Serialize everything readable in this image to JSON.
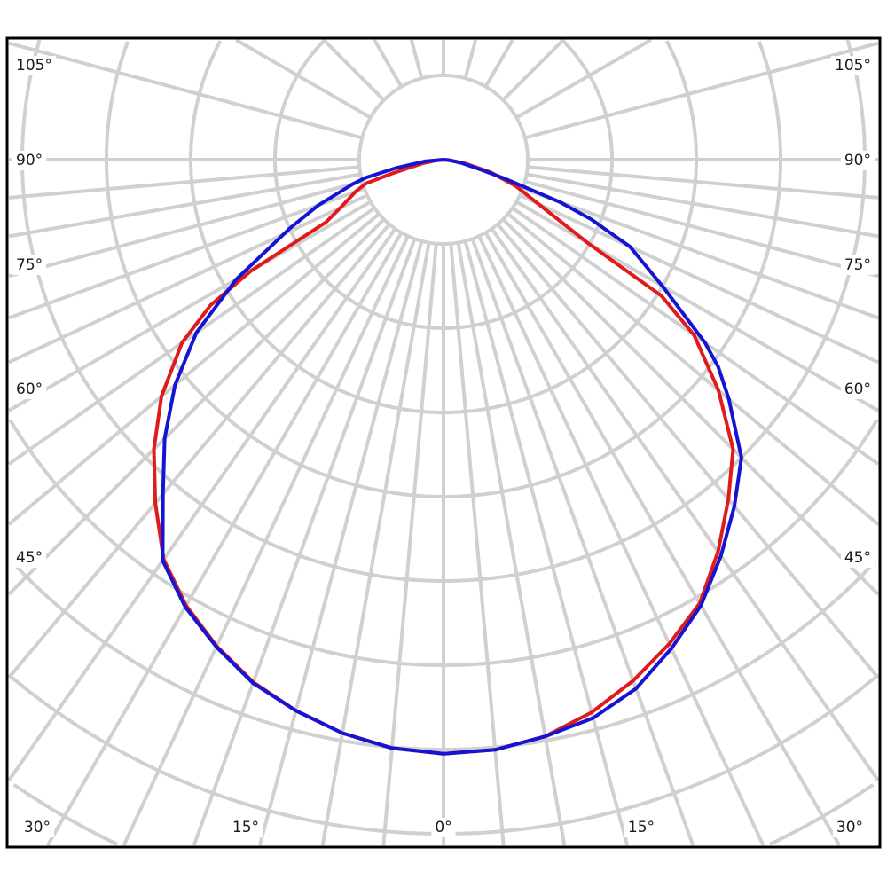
{
  "chart_data": {
    "type": "line",
    "subtype": "polar",
    "title": "",
    "angle_labels": {
      "bottom": [
        "30°",
        "15°",
        "0°",
        "15°",
        "30°"
      ],
      "left": [
        "105°",
        "90°",
        "75°",
        "60°",
        "45°"
      ],
      "right": [
        "105°",
        "90°",
        "75°",
        "60°",
        "45°"
      ]
    },
    "angle_unit": "degrees",
    "radial_rings": 10,
    "radial_tick_labels": [],
    "grid": true,
    "legend": "none",
    "colors": {
      "grid": "#d0d0d0",
      "frame": "#000000"
    },
    "series": [
      {
        "color": "#e01b1b",
        "angles": [
          -90,
          -85,
          -80,
          -75,
          -73,
          -70,
          -65,
          -62,
          -60,
          -58,
          -55,
          -50,
          -45,
          -40,
          -35,
          -30,
          -25,
          -20,
          -15,
          -10,
          -5,
          0,
          5,
          10,
          15,
          20,
          25,
          30,
          35,
          40,
          45,
          50,
          55,
          58,
          60,
          65,
          70,
          75,
          80,
          85,
          90
        ],
        "values": [
          0,
          0.08,
          0.26,
          0.63,
          0.96,
          1.11,
          1.35,
          1.58,
          2.63,
          3.26,
          3.79,
          4.37,
          4.86,
          5.32,
          5.79,
          6.11,
          6.37,
          6.6,
          6.77,
          6.91,
          7.01,
          7.05,
          7.03,
          6.95,
          6.79,
          6.58,
          6.34,
          6.08,
          5.68,
          5.26,
          4.86,
          4.26,
          3.63,
          3.05,
          1.98,
          1.24,
          0.91,
          0.58,
          0.26,
          0.08,
          0
        ]
      },
      {
        "color": "#1414d2",
        "angles": [
          -90,
          -85,
          -80,
          -77,
          -75,
          -70,
          -66,
          -60,
          -55,
          -50,
          -45,
          -40,
          -35,
          -30,
          -25,
          -20,
          -15,
          -10,
          -5,
          0,
          5,
          10,
          15,
          20,
          25,
          30,
          35,
          40,
          45,
          50,
          53,
          55,
          60,
          65,
          68,
          70,
          73,
          75,
          80,
          85,
          90
        ],
        "values": [
          0,
          0.21,
          0.58,
          0.94,
          1.11,
          1.58,
          1.99,
          2.84,
          3.58,
          4.16,
          4.68,
          5.18,
          5.81,
          6.13,
          6.38,
          6.61,
          6.77,
          6.91,
          7.01,
          7.05,
          7.03,
          6.95,
          6.86,
          6.68,
          6.4,
          6.11,
          5.74,
          5.37,
          5.0,
          4.42,
          4.08,
          3.79,
          3.0,
          2.44,
          1.89,
          1.47,
          0.74,
          0.47,
          0.21,
          0.06,
          0
        ]
      }
    ]
  }
}
